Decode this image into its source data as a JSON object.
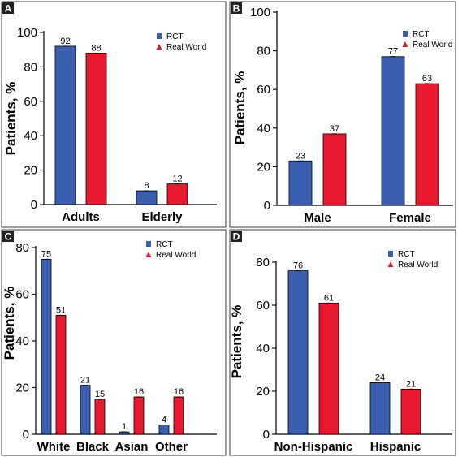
{
  "colors": {
    "rct": "#3a5fb0",
    "real_world": "#e8192c"
  },
  "chart_data": [
    {
      "panel": "A",
      "type": "bar",
      "ylabel": "Patients, %",
      "ylim": [
        0,
        100
      ],
      "yticks": [
        0,
        20,
        40,
        60,
        80,
        100
      ],
      "categories": [
        "Adults",
        "Elderly"
      ],
      "series": [
        {
          "name": "RCT",
          "values": [
            92,
            8
          ]
        },
        {
          "name": "Real World",
          "values": [
            88,
            12
          ]
        }
      ],
      "legend": "top-right"
    },
    {
      "panel": "B",
      "type": "bar",
      "ylabel": "Patients, %",
      "ylim": [
        0,
        100
      ],
      "yticks": [
        0,
        20,
        40,
        60,
        80,
        100
      ],
      "categories": [
        "Male",
        "Female"
      ],
      "series": [
        {
          "name": "RCT",
          "values": [
            23,
            77
          ]
        },
        {
          "name": "Real World",
          "values": [
            37,
            63
          ]
        }
      ],
      "legend": "top-right"
    },
    {
      "panel": "C",
      "type": "bar",
      "ylabel": "Patients, %",
      "ylim": [
        0,
        80
      ],
      "yticks": [
        0,
        20,
        40,
        60,
        80
      ],
      "categories": [
        "White",
        "Black",
        "Asian",
        "Other"
      ],
      "series": [
        {
          "name": "RCT",
          "values": [
            75,
            21,
            1,
            4
          ]
        },
        {
          "name": "Real World",
          "values": [
            51,
            15,
            16,
            16
          ]
        }
      ],
      "legend": "top-right"
    },
    {
      "panel": "D",
      "type": "bar",
      "ylabel": "Patients, %",
      "ylim": [
        0,
        80
      ],
      "yticks": [
        0,
        20,
        40,
        60,
        80
      ],
      "categories": [
        "Non-Hispanic",
        "Hispanic"
      ],
      "series": [
        {
          "name": "RCT",
          "values": [
            76,
            24
          ]
        },
        {
          "name": "Real World",
          "values": [
            61,
            21
          ]
        }
      ],
      "legend": "top-right"
    }
  ]
}
